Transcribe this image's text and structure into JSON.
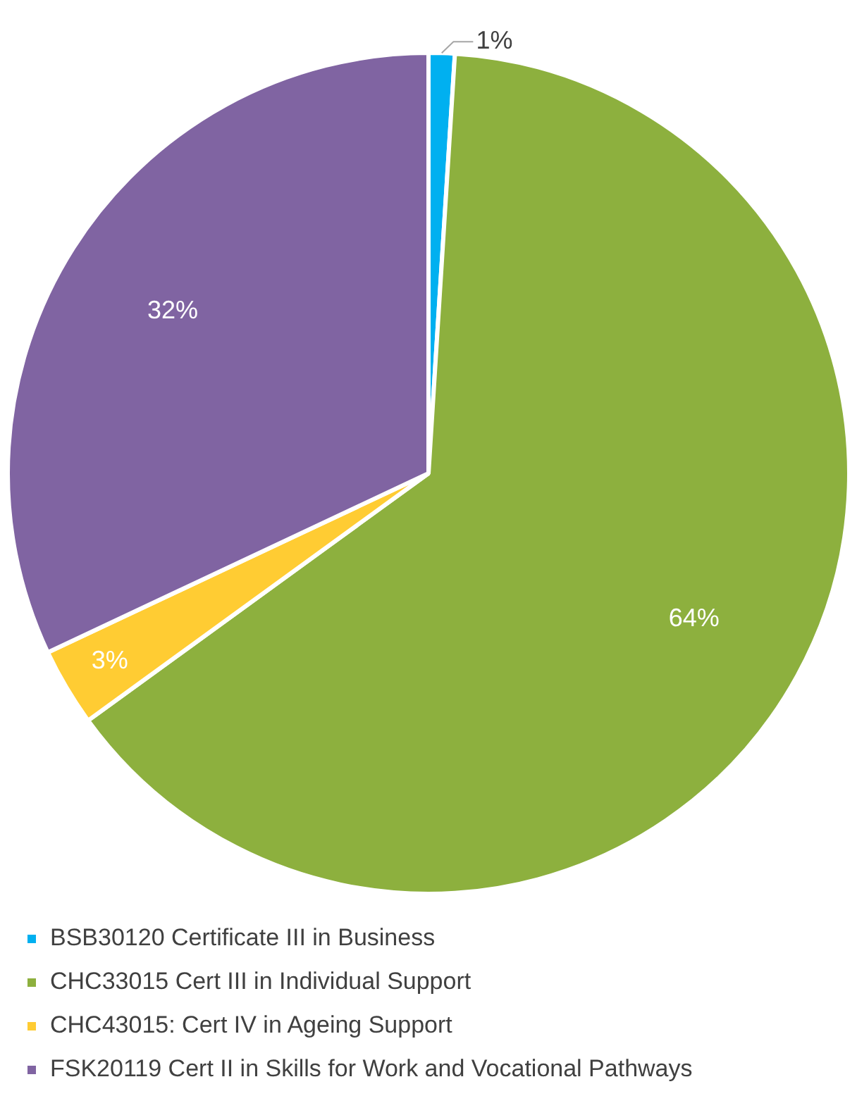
{
  "chart_data": {
    "type": "pie",
    "categories": [
      "BSB30120 Certificate III in Business",
      "CHC33015 Cert III in Individual Support",
      "CHC43015: Cert IV in Ageing Support",
      "FSK20119 Cert II in Skills for Work and Vocational Pathways"
    ],
    "values": [
      1,
      64,
      3,
      32
    ],
    "colors": [
      "#00b0f0",
      "#8db03e",
      "#ffcc33",
      "#8064a2"
    ],
    "value_labels": [
      "1%",
      "64%",
      "3%",
      "32%"
    ],
    "legend": "bottom"
  }
}
